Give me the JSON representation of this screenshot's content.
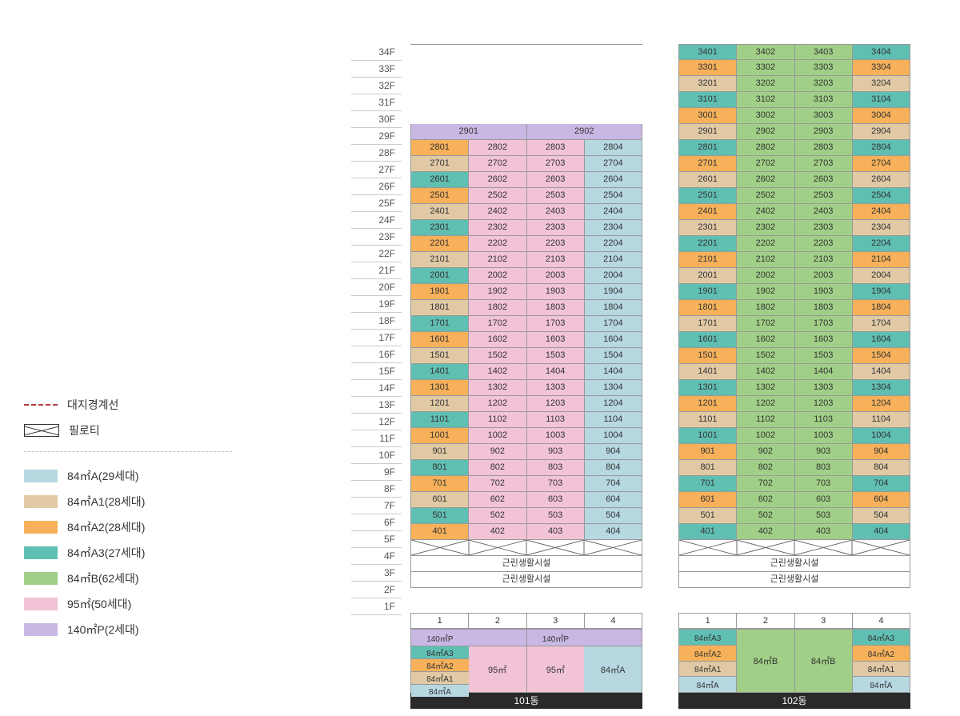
{
  "colors": {
    "84A": "#b7d7e1",
    "84A1": "#e0c9a4",
    "84A2": "#f6b15a",
    "84A3": "#60bfb3",
    "84B": "#a1cf87",
    "95": "#f2c3d6",
    "140P": "#c9b7e4",
    "white": "#ffffff",
    "piloti": "#ffffff",
    "text": "#333333",
    "border": "#999999",
    "dark": "#2a2a2a"
  },
  "legend": {
    "boundary": "대지경계선",
    "piloti": "필로티",
    "items": [
      {
        "c": "84A",
        "label": "84㎡A(29세대)"
      },
      {
        "c": "84A1",
        "label": "84㎡A1(28세대)"
      },
      {
        "c": "84A2",
        "label": "84㎡A2(28세대)"
      },
      {
        "c": "84A3",
        "label": "84㎡A3(27세대)"
      },
      {
        "c": "84B",
        "label": "84㎡B(62세대)"
      },
      {
        "c": "95",
        "label": "95㎡(50세대)"
      },
      {
        "c": "140P",
        "label": "140㎡P(2세대)"
      }
    ]
  },
  "floors": [
    "34F",
    "33F",
    "32F",
    "31F",
    "30F",
    "29F",
    "28F",
    "27F",
    "26F",
    "25F",
    "24F",
    "23F",
    "22F",
    "21F",
    "20F",
    "19F",
    "18F",
    "17F",
    "16F",
    "15F",
    "14F",
    "13F",
    "12F",
    "11F",
    "10F",
    "9F",
    "8F",
    "7F",
    "6F",
    "5F",
    "4F",
    "3F",
    "2F",
    "1F"
  ],
  "towers": {
    "101": {
      "title": "101동",
      "pattern4": {
        "col1": [
          "84A2",
          "84A1",
          "84A3",
          "84A2",
          "84A1",
          "84A3",
          "84A2",
          "84A1",
          "84A3",
          "84A2",
          "84A1",
          "84A3",
          "84A2",
          "84A1",
          "84A3",
          "84A2",
          "84A1",
          "84A3",
          "84A2",
          "84A1",
          "84A3",
          "84A2",
          "84A1",
          "84A3",
          "84A2",
          "84A1"
        ],
        "col2": "95",
        "col3": "95",
        "col4": "84A"
      },
      "rows": [
        {
          "f": 34,
          "type": "blank"
        },
        {
          "f": 33,
          "type": "blank"
        },
        {
          "f": 32,
          "type": "blank"
        },
        {
          "f": 31,
          "type": "blank"
        },
        {
          "f": 30,
          "type": "blank"
        },
        {
          "f": 29,
          "type": "wide2",
          "labels": [
            "2901",
            "2902"
          ],
          "c": "140P"
        },
        {
          "f": 28,
          "type": "4",
          "base": 28
        },
        {
          "f": 27,
          "type": "4",
          "base": 27
        },
        {
          "f": 26,
          "type": "4",
          "base": 26
        },
        {
          "f": 25,
          "type": "4",
          "base": 25
        },
        {
          "f": 24,
          "type": "4",
          "base": 24
        },
        {
          "f": 23,
          "type": "4",
          "base": 23
        },
        {
          "f": 22,
          "type": "4",
          "base": 22
        },
        {
          "f": 21,
          "type": "4",
          "base": 21
        },
        {
          "f": 20,
          "type": "4",
          "base": 20
        },
        {
          "f": 19,
          "type": "4",
          "base": 19
        },
        {
          "f": 18,
          "type": "4",
          "base": 18
        },
        {
          "f": 17,
          "type": "4",
          "base": 17
        },
        {
          "f": 16,
          "type": "4",
          "base": 16
        },
        {
          "f": 15,
          "type": "4",
          "base": 15
        },
        {
          "f": 14,
          "type": "4x",
          "labels": [
            "1401",
            "1402",
            "1404",
            "1404"
          ],
          "base": 14
        },
        {
          "f": 13,
          "type": "4",
          "base": 13
        },
        {
          "f": 12,
          "type": "4",
          "base": 12
        },
        {
          "f": 11,
          "type": "4",
          "base": 11
        },
        {
          "f": 10,
          "type": "4",
          "base": 10
        },
        {
          "f": 9,
          "type": "4",
          "base": 9
        },
        {
          "f": 8,
          "type": "4",
          "base": 8
        },
        {
          "f": 7,
          "type": "4",
          "base": 7
        },
        {
          "f": 6,
          "type": "4",
          "base": 6
        },
        {
          "f": 5,
          "type": "4",
          "base": 5
        },
        {
          "f": 4,
          "type": "4",
          "base": 4
        },
        {
          "f": 3,
          "type": "piloti"
        },
        {
          "f": 2,
          "type": "span",
          "label": "근린생활시설"
        },
        {
          "f": 1,
          "type": "span",
          "label": "근린생활시설"
        }
      ],
      "footer": {
        "cols": [
          "1",
          "2",
          "3",
          "4"
        ],
        "layout": [
          {
            "w": 1,
            "rows": [
              {
                "c": "140P",
                "label": "140㎡P",
                "span": 2,
                "merge": "right"
              }
            ]
          },
          {
            "w": 1,
            "rows": []
          },
          {
            "w": 1,
            "rows": []
          },
          {
            "w": 1,
            "rows": []
          }
        ],
        "stack1": [
          {
            "c": "84A3",
            "label": "84㎡A3"
          },
          {
            "c": "84A2",
            "label": "84㎡A2"
          },
          {
            "c": "84A1",
            "label": "84㎡A1"
          },
          {
            "c": "84A",
            "label": "84㎡A"
          }
        ],
        "mid": [
          {
            "c": "95",
            "label": "95㎡"
          },
          {
            "c": "95",
            "label": "95㎡"
          }
        ],
        "right": {
          "c": "84A",
          "label": "84㎡A"
        },
        "top": [
          {
            "c": "140P",
            "label": "140㎡P",
            "span": 2
          },
          {
            "c": "140P",
            "label": "140㎡P",
            "span": 2
          }
        ]
      }
    },
    "102": {
      "title": "102동",
      "pattern4": {
        "col1rot": [
          "84A3",
          "84A2",
          "84A1"
        ],
        "col4rot": [
          "84A3",
          "84A2",
          "84A1"
        ],
        "col2": "84B",
        "col3": "84B"
      },
      "rows": [
        {
          "f": 34,
          "type": "4",
          "base": 34
        },
        {
          "f": 33,
          "type": "4",
          "base": 33
        },
        {
          "f": 32,
          "type": "4",
          "base": 32
        },
        {
          "f": 31,
          "type": "4",
          "base": 31
        },
        {
          "f": 30,
          "type": "4",
          "base": 30
        },
        {
          "f": 29,
          "type": "4",
          "base": 29
        },
        {
          "f": 28,
          "type": "4",
          "base": 28
        },
        {
          "f": 27,
          "type": "4",
          "base": 27
        },
        {
          "f": 26,
          "type": "4",
          "base": 26
        },
        {
          "f": 25,
          "type": "4",
          "base": 25
        },
        {
          "f": 24,
          "type": "4",
          "base": 24
        },
        {
          "f": 23,
          "type": "4",
          "base": 23
        },
        {
          "f": 22,
          "type": "4",
          "base": 22
        },
        {
          "f": 21,
          "type": "4",
          "base": 21
        },
        {
          "f": 20,
          "type": "4",
          "base": 20
        },
        {
          "f": 19,
          "type": "4",
          "base": 19
        },
        {
          "f": 18,
          "type": "4",
          "base": 18
        },
        {
          "f": 17,
          "type": "4",
          "base": 17
        },
        {
          "f": 16,
          "type": "4",
          "base": 16
        },
        {
          "f": 15,
          "type": "4",
          "base": 15
        },
        {
          "f": 14,
          "type": "4x",
          "labels": [
            "1401",
            "1402",
            "1404",
            "1404"
          ],
          "base": 14
        },
        {
          "f": 13,
          "type": "4",
          "base": 13
        },
        {
          "f": 12,
          "type": "4",
          "base": 12
        },
        {
          "f": 11,
          "type": "4",
          "base": 11
        },
        {
          "f": 10,
          "type": "4",
          "base": 10
        },
        {
          "f": 9,
          "type": "4",
          "base": 9
        },
        {
          "f": 8,
          "type": "4",
          "base": 8
        },
        {
          "f": 7,
          "type": "4",
          "base": 7
        },
        {
          "f": 6,
          "type": "4",
          "base": 6
        },
        {
          "f": 5,
          "type": "4",
          "base": 5
        },
        {
          "f": 4,
          "type": "4",
          "base": 4
        },
        {
          "f": 3,
          "type": "piloti"
        },
        {
          "f": 2,
          "type": "span",
          "label": "근린생활시설"
        },
        {
          "f": 1,
          "type": "span",
          "label": "근린생활시설"
        }
      ],
      "footer": {
        "cols": [
          "1",
          "2",
          "3",
          "4"
        ],
        "stack1": [
          {
            "c": "84A3",
            "label": "84㎡A3"
          },
          {
            "c": "84A2",
            "label": "84㎡A2"
          },
          {
            "c": "84A1",
            "label": "84㎡A1"
          },
          {
            "c": "84A",
            "label": "84㎡A"
          }
        ],
        "mid": [
          {
            "c": "84B",
            "label": "84㎡B"
          },
          {
            "c": "84B",
            "label": "84㎡B"
          }
        ],
        "stack4": [
          {
            "c": "84A3",
            "label": "84㎡A3"
          },
          {
            "c": "84A2",
            "label": "84㎡A2"
          },
          {
            "c": "84A1",
            "label": "84㎡A1"
          },
          {
            "c": "84A",
            "label": "84㎡A"
          }
        ]
      }
    }
  }
}
